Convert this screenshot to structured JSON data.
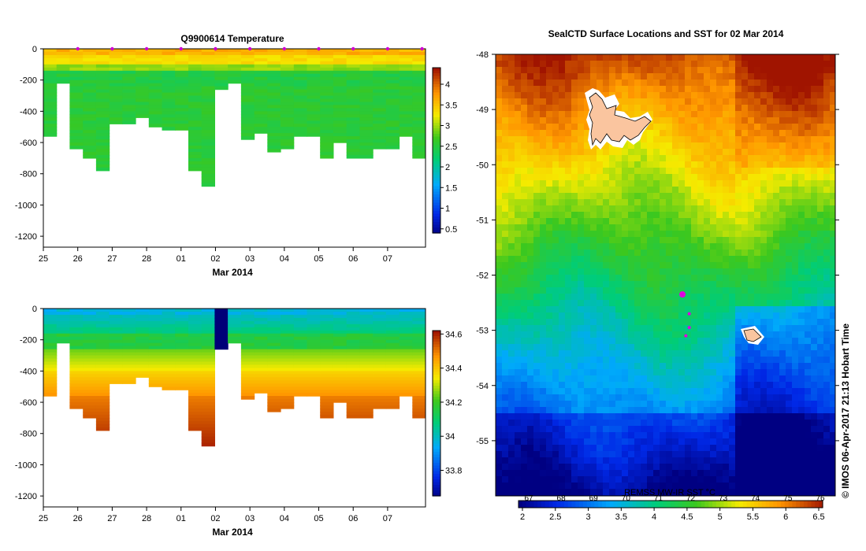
{
  "chart_data": [
    {
      "type": "heatmap",
      "title": "Q9900614  Temperature",
      "xlabel": "Mar 2014",
      "ylabel": "",
      "x_ticks": [
        "25",
        "26",
        "27",
        "28",
        "01",
        "02",
        "03",
        "04",
        "05",
        "06",
        "07"
      ],
      "y_ticks": [
        "0",
        "-200",
        "-400",
        "-600",
        "-800",
        "-1000",
        "-1200"
      ],
      "ylim": [
        -1270,
        0
      ],
      "colorbar_ticks": [
        "0.5",
        "1",
        "1.5",
        "2",
        "2.5",
        "3",
        "3.5",
        "4"
      ],
      "colorbar_range": [
        0.4,
        4.4
      ],
      "profile_max_depth": [
        550,
        210,
        630,
        700,
        780,
        470,
        480,
        440,
        490,
        510,
        510,
        780,
        880,
        260,
        210,
        570,
        540,
        660,
        640,
        550,
        550,
        700,
        600,
        700,
        700,
        630,
        630,
        550,
        700
      ],
      "profile_marker_days": [
        1,
        2,
        3,
        4,
        5,
        6,
        7,
        8,
        9,
        10,
        11
      ]
    },
    {
      "type": "heatmap",
      "title": "",
      "xlabel": "Mar 2014",
      "ylabel": "",
      "x_ticks": [
        "25",
        "26",
        "27",
        "28",
        "01",
        "02",
        "03",
        "04",
        "05",
        "06",
        "07"
      ],
      "y_ticks": [
        "0",
        "-200",
        "-400",
        "-600",
        "-800",
        "-1000",
        "-1200"
      ],
      "ylim": [
        -1270,
        0
      ],
      "colorbar_ticks": [
        "33.8",
        "34",
        "34.2",
        "34.4",
        "34.6"
      ],
      "colorbar_range": [
        33.65,
        34.62
      ],
      "profile_max_depth": [
        550,
        210,
        630,
        700,
        780,
        470,
        480,
        440,
        490,
        510,
        510,
        780,
        880,
        260,
        210,
        570,
        540,
        660,
        640,
        550,
        550,
        700,
        600,
        700,
        700,
        630,
        630,
        550,
        700
      ]
    },
    {
      "type": "heatmap",
      "title": "SealCTD Surface Locations and SST for 02 Mar 2014",
      "xlabel": "",
      "ylabel": "",
      "y_ticks": [
        "-48",
        "-49",
        "-50",
        "-51",
        "-52",
        "-53",
        "-54",
        "-55"
      ],
      "ylim": [
        -56,
        -48
      ],
      "colorbar_label": "REMSS MW-IR SST °C",
      "colorbar_bottom_ticks": [
        "2",
        "2.5",
        "3",
        "3.5",
        "4",
        "4.5",
        "5",
        "5.5",
        "6",
        "6.5"
      ],
      "colorbar_top_ticks": [
        "67",
        "68",
        "69",
        "70",
        "71",
        "72",
        "73",
        "74",
        "75",
        "76"
      ],
      "seal_positions": [
        {
          "lon": 72.0,
          "lat": -52.35
        },
        {
          "lon": 72.2,
          "lat": -52.7
        },
        {
          "lon": 72.2,
          "lat": -52.95
        },
        {
          "lon": 72.1,
          "lat": -53.1
        }
      ]
    }
  ],
  "credit": "© IMOS 06-Apr-2017 21:13 Hobart Time"
}
